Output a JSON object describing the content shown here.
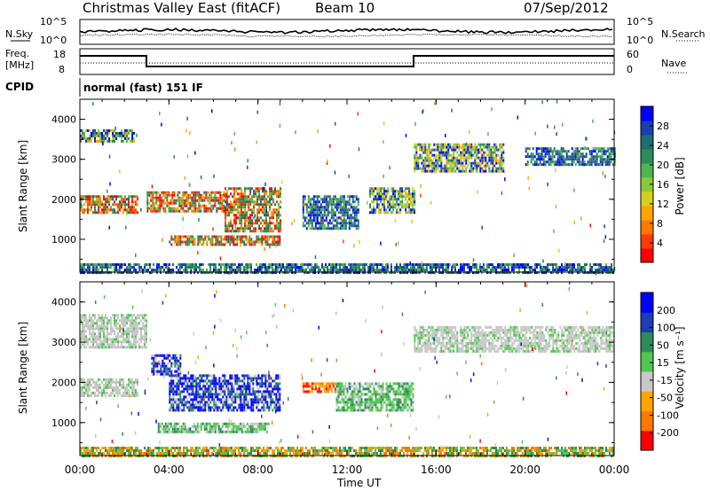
{
  "header": {
    "title": "Christmas Valley East (fitACF)",
    "beam": "Beam 10",
    "date": "07/Sep/2012"
  },
  "top_panels": {
    "nsky_label": "N.Sky",
    "nsky_ticks": [
      "10^5",
      "10^0"
    ],
    "nsearch_label": "N.Search",
    "nsearch_ticks": [
      "10^5",
      "10^0"
    ],
    "freq_label_line1": "Freq.",
    "freq_label_line2": "[MHz]",
    "freq_ticks": [
      "18",
      "8"
    ],
    "nave_label": "Nave",
    "nave_ticks": [
      "60",
      "0"
    ],
    "cpid_label": "CPID",
    "cpid_value": "normal (fast) 151 IF"
  },
  "chart_data": [
    {
      "type": "heatmap",
      "name": "power",
      "ylabel": "Slant Range [km]",
      "yticks": [
        "4000",
        "3000",
        "2000",
        "1000"
      ],
      "ylim": [
        180,
        4500
      ],
      "colorbar_label": "Power [dB]",
      "colorbar_ticks": [
        "28",
        "24",
        "20",
        "16",
        "12",
        "8",
        "4"
      ],
      "colorbar_colors": [
        "#0000ff",
        "#1e3cb4",
        "#1e6e6e",
        "#2e8b57",
        "#50b450",
        "#8cc83c",
        "#d2d21e",
        "#ffa500",
        "#ff7800",
        "#ff3c00",
        "#ff0000"
      ],
      "echo_regions": [
        {
          "t0": 0.0,
          "t1": 2.6,
          "r0": 1700,
          "r1": 2100,
          "level": "high"
        },
        {
          "t0": 0.0,
          "t1": 2.4,
          "r0": 3450,
          "r1": 3750,
          "level": "mid"
        },
        {
          "t0": 3.0,
          "t1": 6.5,
          "r0": 1700,
          "r1": 2200,
          "level": "high"
        },
        {
          "t0": 4.0,
          "t1": 9.0,
          "r0": 900,
          "r1": 1100,
          "level": "high"
        },
        {
          "t0": 6.5,
          "t1": 9.0,
          "r0": 1200,
          "r1": 2300,
          "level": "high"
        },
        {
          "t0": 10.0,
          "t1": 12.5,
          "r0": 1300,
          "r1": 2100,
          "level": "low"
        },
        {
          "t0": 13.0,
          "t1": 15.0,
          "r0": 1700,
          "r1": 2300,
          "level": "mid"
        },
        {
          "t0": 15.0,
          "t1": 19.0,
          "r0": 2700,
          "r1": 3400,
          "level": "mid"
        },
        {
          "t0": 20.0,
          "t1": 24.0,
          "r0": 2900,
          "r1": 3300,
          "level": "low"
        },
        {
          "t0": 0.0,
          "t1": 24.0,
          "r0": 200,
          "r1": 400,
          "level": "low"
        }
      ]
    },
    {
      "type": "heatmap",
      "name": "velocity",
      "ylabel": "Slant Range [km]",
      "yticks": [
        "4000",
        "3000",
        "2000",
        "1000"
      ],
      "ylim": [
        180,
        4500
      ],
      "colorbar_label": "Velocity [m s⁻¹]",
      "colorbar_ticks": [
        "200",
        "100",
        "50",
        "15",
        "-15",
        "-50",
        "-100",
        "-200"
      ],
      "colorbar_colors": [
        "#0000ff",
        "#1e3cb4",
        "#2e8b57",
        "#50c850",
        "#c8c8c8",
        "#ffa500",
        "#ff7800",
        "#ff0000"
      ],
      "echo_regions": [
        {
          "t0": 0.0,
          "t1": 2.6,
          "r0": 1700,
          "r1": 2100,
          "level": "gray"
        },
        {
          "t0": 0.0,
          "t1": 3.0,
          "r0": 2900,
          "r1": 3700,
          "level": "gray"
        },
        {
          "t0": 3.2,
          "t1": 4.5,
          "r0": 2200,
          "r1": 2700,
          "level": "blue"
        },
        {
          "t0": 4.0,
          "t1": 9.0,
          "r0": 1300,
          "r1": 2200,
          "level": "blue"
        },
        {
          "t0": 3.5,
          "t1": 8.5,
          "r0": 800,
          "r1": 1000,
          "level": "green"
        },
        {
          "t0": 10.0,
          "t1": 11.5,
          "r0": 1800,
          "r1": 2000,
          "level": "orange"
        },
        {
          "t0": 11.5,
          "t1": 15.0,
          "r0": 1300,
          "r1": 2000,
          "level": "green"
        },
        {
          "t0": 15.0,
          "t1": 24.0,
          "r0": 2800,
          "r1": 3400,
          "level": "gray"
        },
        {
          "t0": 0.0,
          "t1": 24.0,
          "r0": 200,
          "r1": 400,
          "level": "greenorange"
        }
      ]
    }
  ],
  "xaxis": {
    "label": "Time UT",
    "ticks": [
      "00:00",
      "04:00",
      "08:00",
      "12:00",
      "16:00",
      "20:00",
      "00:00"
    ],
    "xlim": [
      0,
      24
    ]
  }
}
